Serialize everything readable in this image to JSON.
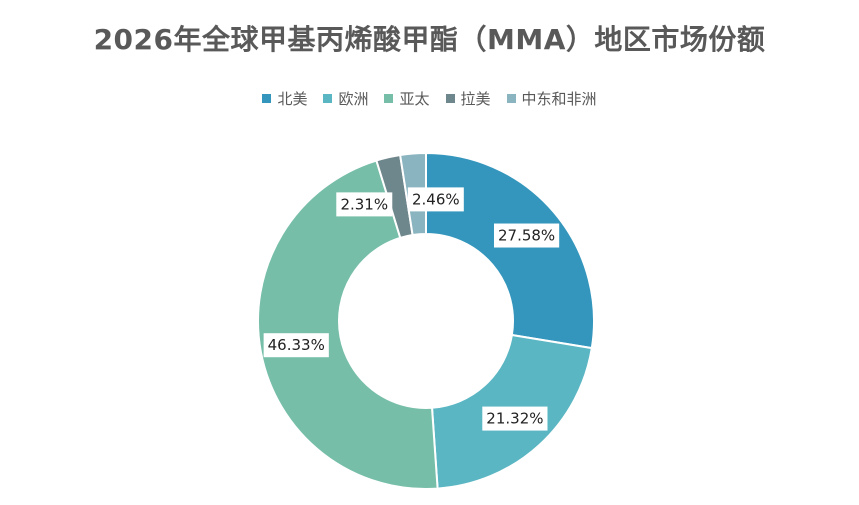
{
  "chart_data": {
    "type": "pie",
    "style": "donut",
    "title": "2026年全球甲基丙烯酸甲酯（MMA）地区市场份额",
    "legend_position": "top",
    "categories": [
      "北美",
      "欧洲",
      "亚太",
      "拉美",
      "中东和非洲"
    ],
    "values": [
      27.58,
      21.32,
      46.33,
      2.31,
      2.46
    ],
    "labels": [
      "27.58%",
      "21.32%",
      "46.33%",
      "2.31%",
      "2.46%"
    ],
    "colors": [
      "#3496bd",
      "#5ab6c3",
      "#76bea8",
      "#6e878c",
      "#8ab4c0"
    ]
  }
}
